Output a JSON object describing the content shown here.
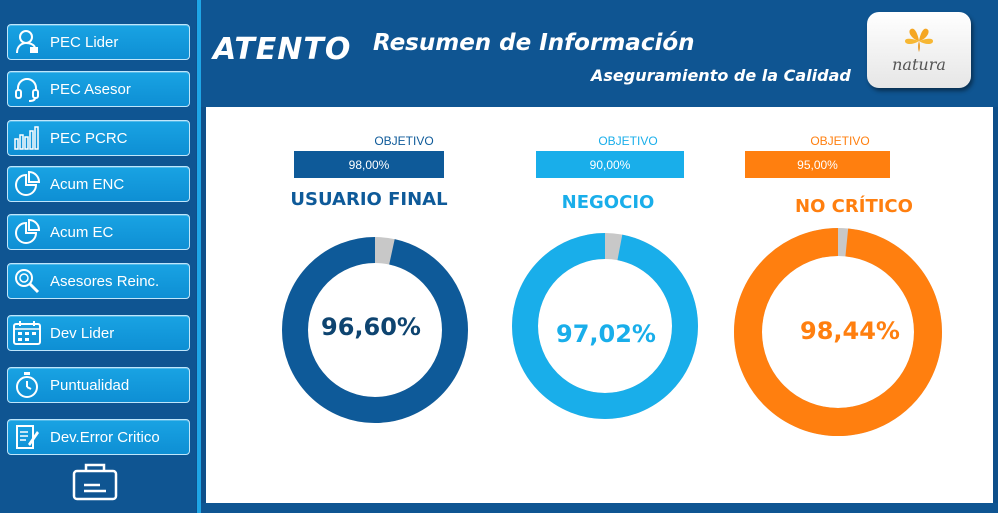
{
  "sidebar": {
    "items": [
      {
        "label": "PEC Lider",
        "icon": "user-lock-icon"
      },
      {
        "label": "PEC Asesor",
        "icon": "headset-icon"
      },
      {
        "label": "PEC PCRC",
        "icon": "bar-chart-icon"
      },
      {
        "label": "Acum ENC",
        "icon": "pie-chart-icon"
      },
      {
        "label": "Acum EC",
        "icon": "pie-chart-icon"
      },
      {
        "label": "Asesores Reinc.",
        "icon": "magnifier-icon"
      },
      {
        "label": "Dev Lider",
        "icon": "calendar-icon"
      },
      {
        "label": "Puntualidad",
        "icon": "stopwatch-icon"
      },
      {
        "label": "Dev.Error Critico",
        "icon": "edit-document-icon"
      }
    ],
    "bottom_icon": "card-icon"
  },
  "header": {
    "brand": "ATENTO",
    "title": "Resumen de Información",
    "subtitle": "Aseguramiento de la Calidad",
    "partner_logo": "natura"
  },
  "panels": [
    {
      "objective_label": "OBJETIVO",
      "objective_value": "98,00%",
      "category": "USUARIO FINAL",
      "value_text": "96,60%",
      "value": 96.6,
      "color": "#0e5a99",
      "label_color": "#0e5a99"
    },
    {
      "objective_label": "OBJETIVO",
      "objective_value": "90,00%",
      "category": "NEGOCIO",
      "value_text": "97,02%",
      "value": 97.02,
      "color": "#19aeea",
      "label_color": "#19aeea"
    },
    {
      "objective_label": "OBJETIVO",
      "objective_value": "95,00%",
      "category": "NO CRÍTICO",
      "value_text": "98,44%",
      "value": 98.44,
      "color": "#ff7f0f",
      "label_color": "#ff7f0f"
    }
  ],
  "colors": {
    "remainder": "#c8c8c8",
    "sidebar_bg": "#0f5592",
    "button": "#14a0e1"
  }
}
